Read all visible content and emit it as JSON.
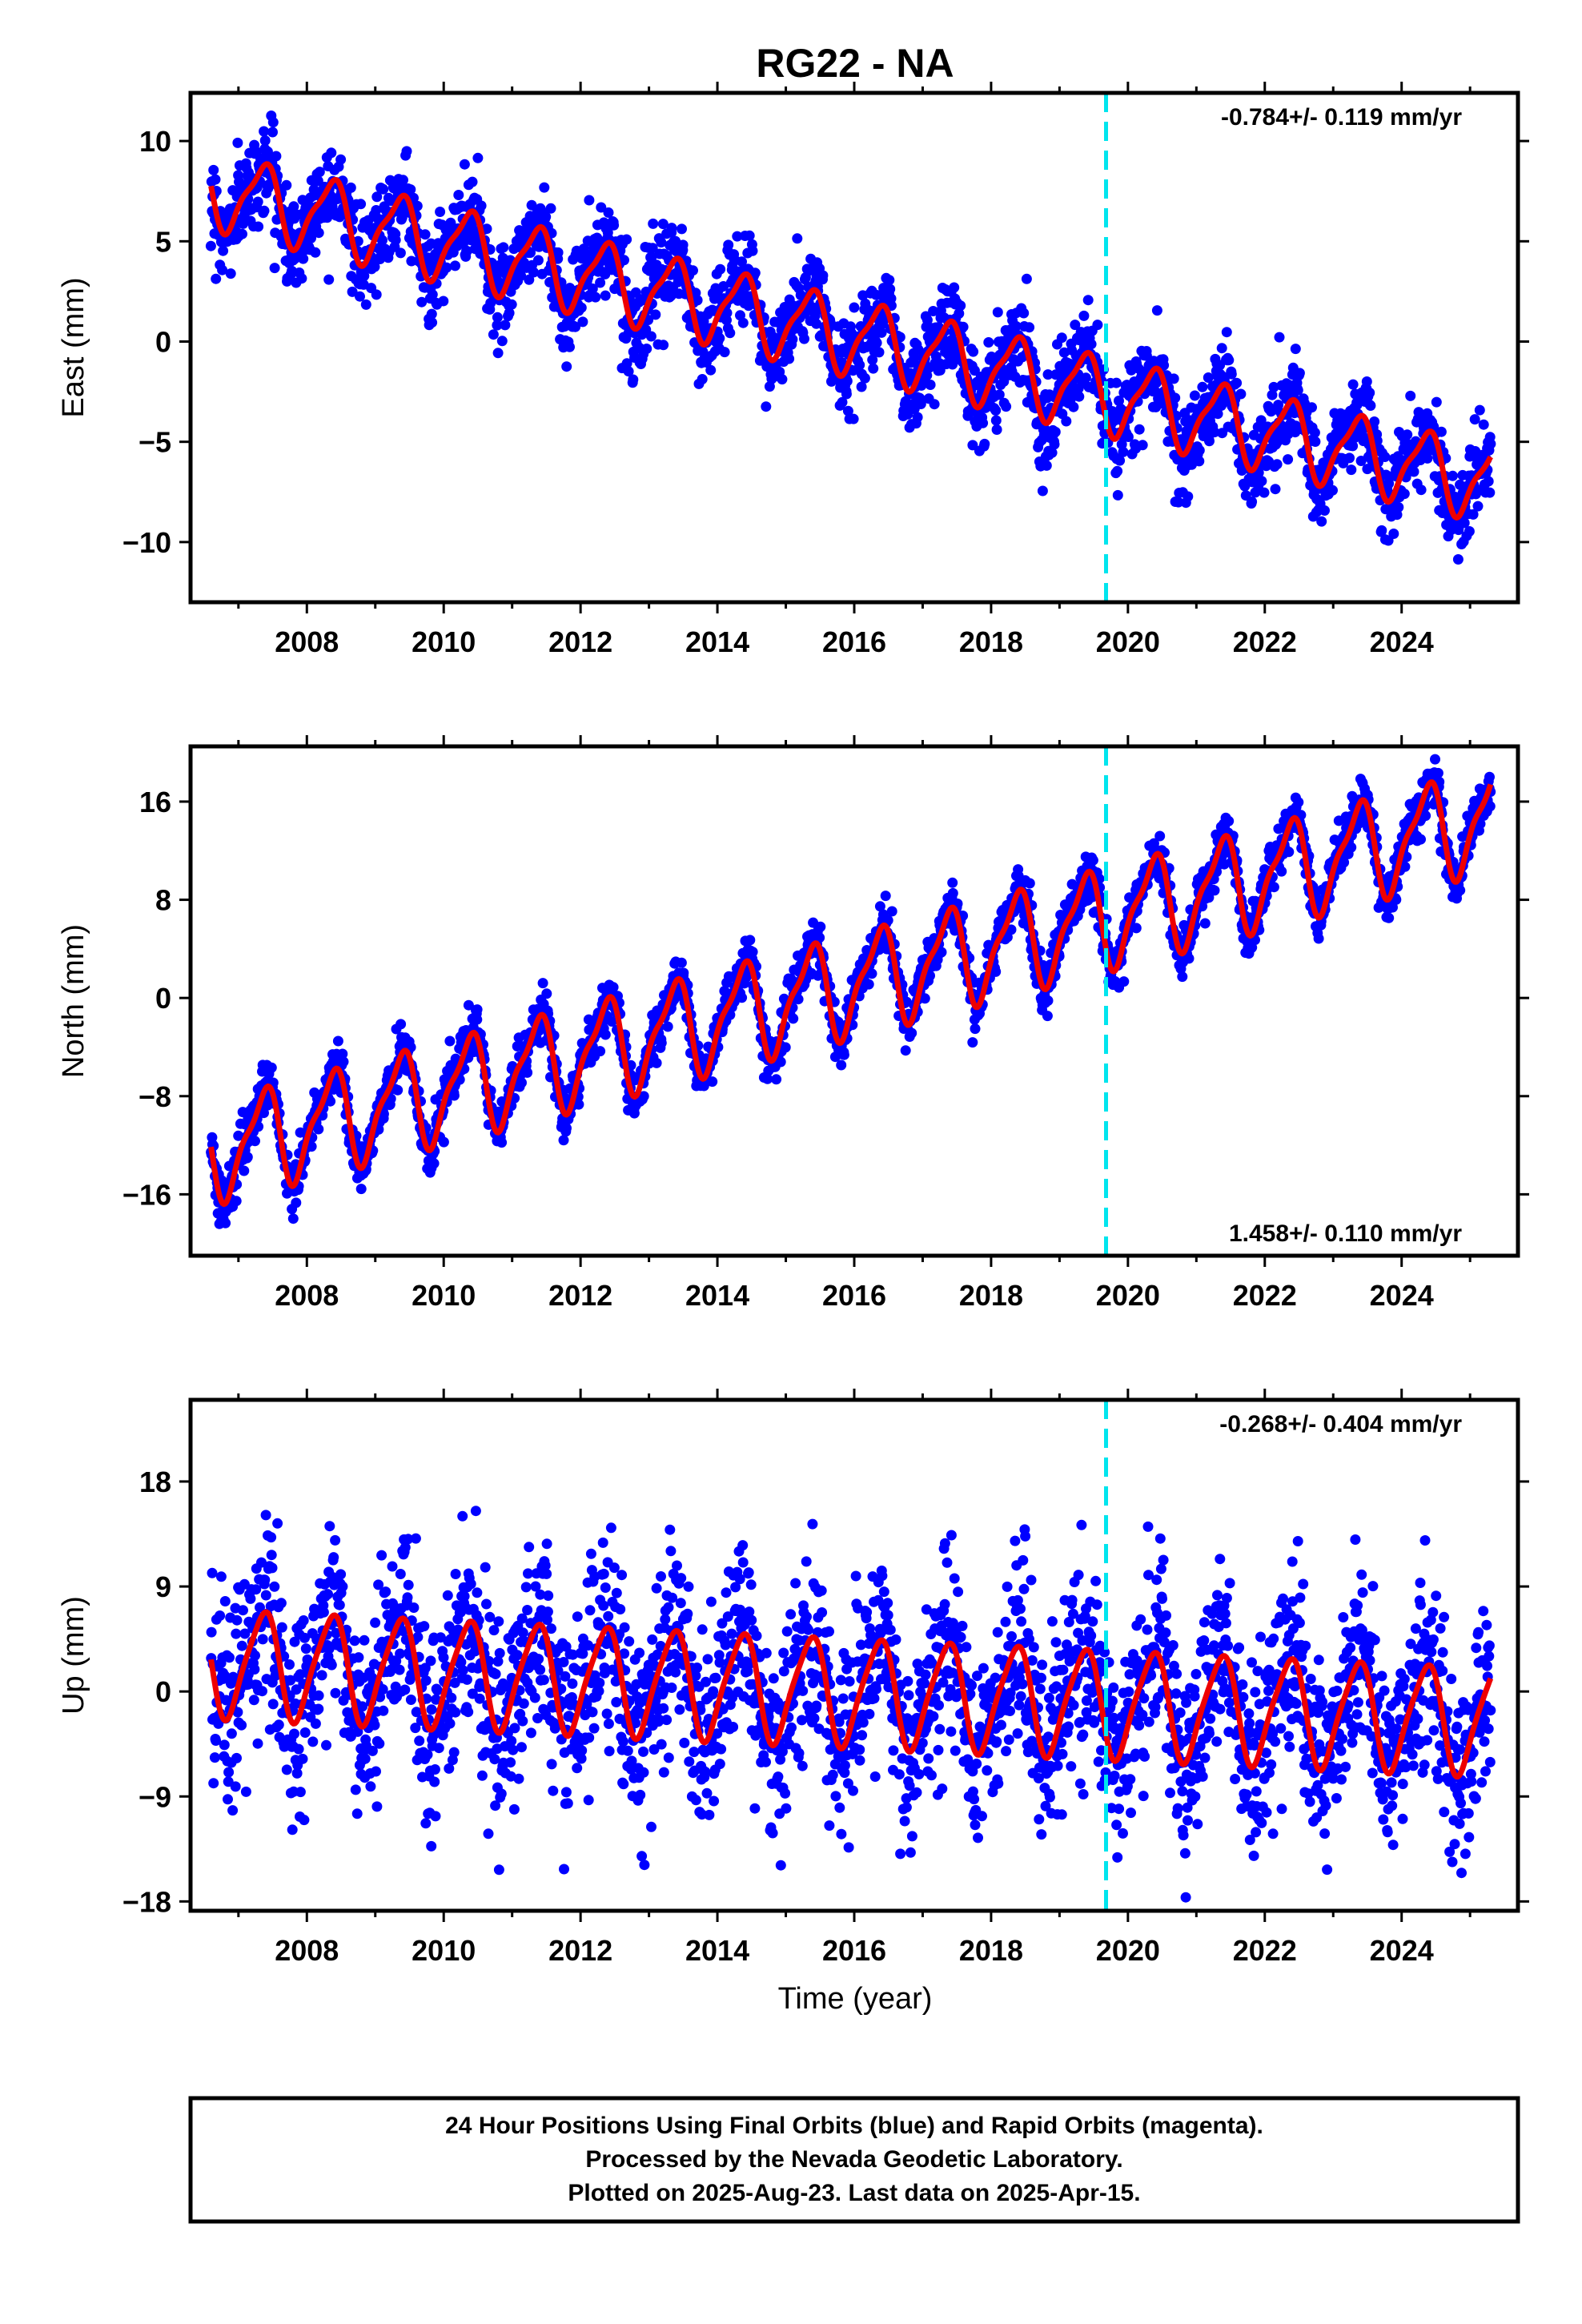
{
  "title": "RG22 - NA",
  "xlabel": "Time (year)",
  "colors": {
    "points": "#0000ff",
    "fit": "#ee0000",
    "marker": "#00e5ee",
    "frame": "#000000"
  },
  "chart_data": [
    {
      "type": "scatter",
      "component": "east",
      "ylabel": "East (mm)",
      "rate_label": "-0.784+/- 0.119 mm/yr",
      "rate_position": "top-right",
      "ylim": [
        -13.0,
        12.4
      ],
      "yticks": [
        10,
        5,
        0,
        -5,
        -10
      ],
      "ytick_labels": [
        "10",
        "5",
        "0",
        "−5",
        "−10"
      ],
      "xlim": [
        2006.3,
        2025.7
      ],
      "xticks": [
        2008,
        2010,
        2012,
        2014,
        2016,
        2018,
        2020,
        2022,
        2024
      ],
      "xtick_labels": [
        "2008",
        "2010",
        "2012",
        "2014",
        "2016",
        "2018",
        "2020",
        "2022",
        "2024"
      ],
      "data_range": [
        2006.6,
        2025.3
      ],
      "marker_year": 2019.68,
      "trend": {
        "value_at_start": 7.6,
        "rate_mm_per_yr": -0.784,
        "annual_amplitude": 1.8,
        "semiannual_amplitude": 0.5
      },
      "scatter_sigma": 1.1,
      "series": [
        {
          "values_description": "daily positions",
          "color": "#0000ff"
        },
        {
          "values_description": "model fit",
          "color": "#ee0000"
        }
      ]
    },
    {
      "type": "scatter",
      "component": "north",
      "ylabel": "North (mm)",
      "rate_label": "1.458+/- 0.110 mm/yr",
      "rate_position": "bottom-right",
      "ylim": [
        -21.0,
        20.5
      ],
      "yticks": [
        16,
        8,
        0,
        -8,
        -16
      ],
      "ytick_labels": [
        "16",
        "8",
        "0",
        "−8",
        "−16"
      ],
      "xlim": [
        2006.3,
        2025.7
      ],
      "xticks": [
        2008,
        2010,
        2012,
        2014,
        2016,
        2018,
        2020,
        2022,
        2024
      ],
      "xtick_labels": [
        "2008",
        "2010",
        "2012",
        "2014",
        "2016",
        "2018",
        "2020",
        "2022",
        "2024"
      ],
      "data_range": [
        2006.6,
        2025.3
      ],
      "marker_year": 2019.68,
      "trend": {
        "value_at_start": -12.5,
        "rate_mm_per_yr": 1.458,
        "annual_amplitude": 3.8,
        "semiannual_amplitude": 1.2
      },
      "scatter_sigma": 1.0,
      "series": [
        {
          "values_description": "daily positions",
          "color": "#0000ff"
        },
        {
          "values_description": "model fit",
          "color": "#ee0000"
        }
      ]
    },
    {
      "type": "scatter",
      "component": "up",
      "ylabel": "Up (mm)",
      "rate_label": "-0.268+/- 0.404 mm/yr",
      "rate_position": "top-right",
      "ylim": [
        -18.8,
        25.0
      ],
      "yticks": [
        18,
        9,
        0,
        -9,
        -18
      ],
      "ytick_labels": [
        "18",
        "9",
        "0",
        "−9",
        "−18"
      ],
      "xlim": [
        2006.3,
        2025.7
      ],
      "xticks": [
        2008,
        2010,
        2012,
        2014,
        2016,
        2018,
        2020,
        2022,
        2024
      ],
      "xtick_labels": [
        "2008",
        "2010",
        "2012",
        "2014",
        "2016",
        "2018",
        "2020",
        "2022",
        "2024"
      ],
      "data_range": [
        2006.6,
        2025.3
      ],
      "marker_year": 2019.68,
      "trend": {
        "value_at_start": 2.5,
        "rate_mm_per_yr": -0.268,
        "annual_amplitude": 4.5,
        "semiannual_amplitude": 0.8
      },
      "scatter_sigma": 4.0,
      "series": [
        {
          "values_description": "daily positions",
          "color": "#0000ff"
        },
        {
          "values_description": "model fit",
          "color": "#ee0000"
        }
      ]
    }
  ],
  "footer": {
    "line1": "24 Hour Positions Using Final Orbits (blue) and Rapid Orbits (magenta).",
    "line2": "Processed by the Nevada Geodetic Laboratory.",
    "line3": "Plotted on 2025-Aug-23. Last data on 2025-Apr-15."
  }
}
